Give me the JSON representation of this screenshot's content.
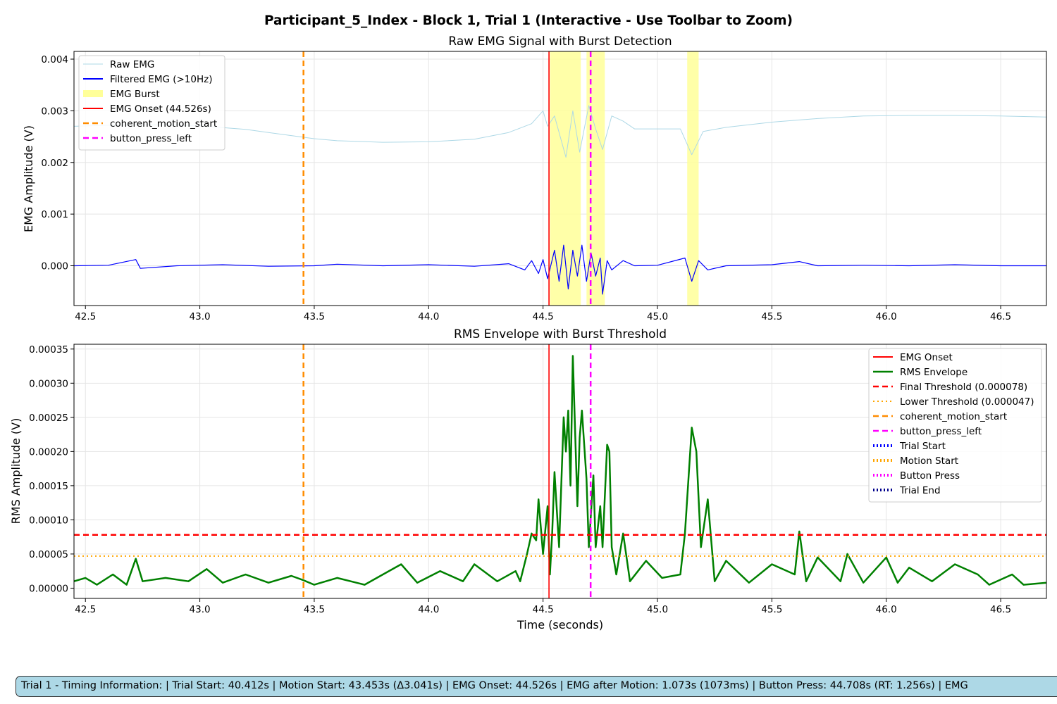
{
  "suptitle": "Participant_5_Index - Block 1, Trial 1 (Interactive - Use Toolbar to Zoom)",
  "timing_info": "Trial 1 - Timing Information:  |  Trial Start: 40.412s  |  Motion Start: 43.453s (Δ3.041s)  |  EMG Onset: 44.526s  |  EMG after Motion: 1.073s (1073ms)  |  Button Press: 44.708s (RT: 1.256s)  |  EMG",
  "chart_data": [
    {
      "type": "line",
      "title": "Raw EMG Signal with Burst Detection",
      "xlabel": "",
      "ylabel": "EMG Amplitude (V)",
      "xlim": [
        42.45,
        46.7
      ],
      "ylim": [
        -0.00077,
        0.00415
      ],
      "xticks": [
        42.5,
        43.0,
        43.5,
        44.0,
        44.5,
        45.0,
        45.5,
        46.0,
        46.5
      ],
      "xtick_labels": [
        "42.5",
        "43.0",
        "43.5",
        "44.0",
        "44.5",
        "45.0",
        "45.5",
        "46.0",
        "46.5"
      ],
      "yticks": [
        0.0,
        0.001,
        0.002,
        0.003,
        0.004
      ],
      "ytick_labels": [
        "0.000",
        "0.001",
        "0.002",
        "0.003",
        "0.004"
      ],
      "grid": true,
      "legend_position": "upper-left",
      "legend": [
        {
          "label": "Raw EMG",
          "color": "#add8e6",
          "style": "thin"
        },
        {
          "label": "Filtered EMG (>10Hz)",
          "color": "#0000ff",
          "style": "solid"
        },
        {
          "label": "EMG Burst",
          "color": "#ffff99",
          "style": "patch"
        },
        {
          "label": "EMG Onset (44.526s)",
          "color": "#ff0000",
          "style": "solid"
        },
        {
          "label": "coherent_motion_start",
          "color": "#ff8c00",
          "style": "dashed"
        },
        {
          "label": "button_press_left",
          "color": "#ff00ff",
          "style": "dashed"
        }
      ],
      "series": [
        {
          "name": "Raw EMG",
          "color": "#add8e6",
          "points": [
            [
              42.45,
              0.0027
            ],
            [
              42.6,
              0.00272
            ],
            [
              42.8,
              0.00273
            ],
            [
              43.0,
              0.00271
            ],
            [
              43.2,
              0.00264
            ],
            [
              43.4,
              0.00252
            ],
            [
              43.5,
              0.00246
            ],
            [
              43.6,
              0.00242
            ],
            [
              43.8,
              0.00239
            ],
            [
              44.0,
              0.0024
            ],
            [
              44.2,
              0.00245
            ],
            [
              44.35,
              0.00258
            ],
            [
              44.45,
              0.00275
            ],
            [
              44.5,
              0.003
            ],
            [
              44.52,
              0.0027
            ],
            [
              44.55,
              0.0029
            ],
            [
              44.6,
              0.0021
            ],
            [
              44.63,
              0.003
            ],
            [
              44.66,
              0.0022
            ],
            [
              44.7,
              0.0031
            ],
            [
              44.73,
              0.00265
            ],
            [
              44.76,
              0.00225
            ],
            [
              44.8,
              0.0029
            ],
            [
              44.85,
              0.0028
            ],
            [
              44.9,
              0.00265
            ],
            [
              45.0,
              0.00265
            ],
            [
              45.1,
              0.00265
            ],
            [
              45.15,
              0.00215
            ],
            [
              45.2,
              0.0026
            ],
            [
              45.3,
              0.00268
            ],
            [
              45.5,
              0.00278
            ],
            [
              45.7,
              0.00285
            ],
            [
              45.9,
              0.0029
            ],
            [
              46.1,
              0.00291
            ],
            [
              46.3,
              0.00291
            ],
            [
              46.5,
              0.0029
            ],
            [
              46.7,
              0.00288
            ]
          ]
        },
        {
          "name": "Filtered EMG (>10Hz)",
          "color": "#0000ff",
          "points": [
            [
              42.45,
              0.0
            ],
            [
              42.6,
              1e-05
            ],
            [
              42.72,
              0.00012
            ],
            [
              42.74,
              -5e-05
            ],
            [
              42.9,
              0.0
            ],
            [
              43.1,
              2e-05
            ],
            [
              43.3,
              -1e-05
            ],
            [
              43.5,
              0.0
            ],
            [
              43.6,
              3e-05
            ],
            [
              43.8,
              0.0
            ],
            [
              44.0,
              2e-05
            ],
            [
              44.2,
              -1e-05
            ],
            [
              44.35,
              4e-05
            ],
            [
              44.42,
              -8e-05
            ],
            [
              44.45,
              0.0001
            ],
            [
              44.48,
              -0.00015
            ],
            [
              44.5,
              0.00012
            ],
            [
              44.52,
              -0.00025
            ],
            [
              44.55,
              0.0003
            ],
            [
              44.57,
              -0.0003
            ],
            [
              44.59,
              0.0004
            ],
            [
              44.61,
              -0.00045
            ],
            [
              44.63,
              0.0003
            ],
            [
              44.65,
              -0.0002
            ],
            [
              44.67,
              0.0004
            ],
            [
              44.69,
              -0.0003
            ],
            [
              44.71,
              0.00025
            ],
            [
              44.73,
              -0.0002
            ],
            [
              44.75,
              0.00015
            ],
            [
              44.76,
              -0.00055
            ],
            [
              44.78,
              0.0001
            ],
            [
              44.8,
              -8e-05
            ],
            [
              44.85,
              0.0001
            ],
            [
              44.9,
              0.0
            ],
            [
              45.0,
              1e-05
            ],
            [
              45.12,
              0.00015
            ],
            [
              45.15,
              -0.0003
            ],
            [
              45.18,
              0.0001
            ],
            [
              45.22,
              -8e-05
            ],
            [
              45.3,
              0.0
            ],
            [
              45.5,
              2e-05
            ],
            [
              45.62,
              8e-05
            ],
            [
              45.7,
              0.0
            ],
            [
              45.9,
              1e-05
            ],
            [
              46.1,
              0.0
            ],
            [
              46.3,
              2e-05
            ],
            [
              46.5,
              0.0
            ],
            [
              46.7,
              0.0
            ]
          ]
        }
      ],
      "bursts": [
        [
          44.53,
          44.665
        ],
        [
          44.69,
          44.77
        ],
        [
          45.13,
          45.18
        ]
      ],
      "vlines": [
        {
          "name": "EMG Onset",
          "x": 44.526,
          "color": "#ff0000",
          "style": "solid"
        },
        {
          "name": "coherent_motion_start",
          "x": 43.453,
          "color": "#ff8c00",
          "style": "dashed"
        },
        {
          "name": "button_press_left",
          "x": 44.708,
          "color": "#ff00ff",
          "style": "dashed"
        }
      ]
    },
    {
      "type": "line",
      "title": "RMS Envelope with Burst Threshold",
      "xlabel": "Time (seconds)",
      "ylabel": "RMS Amplitude (V)",
      "xlim": [
        42.45,
        46.7
      ],
      "ylim": [
        -1.5e-05,
        0.000357
      ],
      "xticks": [
        42.5,
        43.0,
        43.5,
        44.0,
        44.5,
        45.0,
        45.5,
        46.0,
        46.5
      ],
      "xtick_labels": [
        "42.5",
        "43.0",
        "43.5",
        "44.0",
        "44.5",
        "45.0",
        "45.5",
        "46.0",
        "46.5"
      ],
      "yticks": [
        0.0,
        5e-05,
        0.0001,
        0.00015,
        0.0002,
        0.00025,
        0.0003,
        0.00035
      ],
      "ytick_labels": [
        "0.00000",
        "0.00005",
        "0.00010",
        "0.00015",
        "0.00020",
        "0.00025",
        "0.00030",
        "0.00035"
      ],
      "grid": true,
      "legend_position": "upper-right",
      "legend": [
        {
          "label": "EMG Onset",
          "color": "#ff0000",
          "style": "solid"
        },
        {
          "label": "RMS Envelope",
          "color": "#008000",
          "style": "thick"
        },
        {
          "label": "Final Threshold (0.000078)",
          "color": "#ff0000",
          "style": "dashed"
        },
        {
          "label": "Lower Threshold (0.000047)",
          "color": "#ffa500",
          "style": "dotted"
        },
        {
          "label": "coherent_motion_start",
          "color": "#ff8c00",
          "style": "dashed"
        },
        {
          "label": "button_press_left",
          "color": "#ff00ff",
          "style": "dashed"
        },
        {
          "label": "Trial Start",
          "color": "#0000ff",
          "style": "dotted-thick"
        },
        {
          "label": "Motion Start",
          "color": "#ffa500",
          "style": "dotted-thick"
        },
        {
          "label": "Button Press",
          "color": "#ff00ff",
          "style": "dotted-thick"
        },
        {
          "label": "Trial End",
          "color": "#00008b",
          "style": "dotted-thick"
        }
      ],
      "series": [
        {
          "name": "RMS Envelope",
          "color": "#008000",
          "points": [
            [
              42.45,
              1e-05
            ],
            [
              42.5,
              1.5e-05
            ],
            [
              42.55,
              5e-06
            ],
            [
              42.62,
              2e-05
            ],
            [
              42.68,
              5e-06
            ],
            [
              42.72,
              4.3e-05
            ],
            [
              42.75,
              1e-05
            ],
            [
              42.85,
              1.5e-05
            ],
            [
              42.95,
              1e-05
            ],
            [
              43.03,
              2.8e-05
            ],
            [
              43.1,
              8e-06
            ],
            [
              43.2,
              2e-05
            ],
            [
              43.3,
              8e-06
            ],
            [
              43.4,
              1.8e-05
            ],
            [
              43.45,
              1.2e-05
            ],
            [
              43.5,
              5e-06
            ],
            [
              43.6,
              1.5e-05
            ],
            [
              43.72,
              5e-06
            ],
            [
              43.8,
              2e-05
            ],
            [
              43.88,
              3.5e-05
            ],
            [
              43.95,
              8e-06
            ],
            [
              44.05,
              2.5e-05
            ],
            [
              44.15,
              1e-05
            ],
            [
              44.2,
              3.5e-05
            ],
            [
              44.3,
              1e-05
            ],
            [
              44.38,
              2.5e-05
            ],
            [
              44.4,
              1e-05
            ],
            [
              44.43,
              5e-05
            ],
            [
              44.45,
              8e-05
            ],
            [
              44.47,
              7e-05
            ],
            [
              44.48,
              0.00013
            ],
            [
              44.5,
              5e-05
            ],
            [
              44.52,
              0.00012
            ],
            [
              44.53,
              2e-05
            ],
            [
              44.54,
              8e-05
            ],
            [
              44.55,
              0.00017
            ],
            [
              44.57,
              6e-05
            ],
            [
              44.59,
              0.00025
            ],
            [
              44.6,
              0.0002
            ],
            [
              44.61,
              0.00026
            ],
            [
              44.62,
              0.00015
            ],
            [
              44.63,
              0.00034
            ],
            [
              44.65,
              0.00012
            ],
            [
              44.66,
              0.00022
            ],
            [
              44.67,
              0.00026
            ],
            [
              44.69,
              0.00016
            ],
            [
              44.7,
              6e-05
            ],
            [
              44.72,
              0.000165
            ],
            [
              44.73,
              6e-05
            ],
            [
              44.75,
              0.00012
            ],
            [
              44.76,
              6e-05
            ],
            [
              44.78,
              0.00021
            ],
            [
              44.79,
              0.0002
            ],
            [
              44.8,
              6e-05
            ],
            [
              44.82,
              2e-05
            ],
            [
              44.85,
              8e-05
            ],
            [
              44.88,
              1e-05
            ],
            [
              44.95,
              4e-05
            ],
            [
              45.02,
              1.5e-05
            ],
            [
              45.1,
              2e-05
            ],
            [
              45.12,
              8e-05
            ],
            [
              45.15,
              0.000235
            ],
            [
              45.17,
              0.0002
            ],
            [
              45.19,
              6e-05
            ],
            [
              45.22,
              0.00013
            ],
            [
              45.25,
              1e-05
            ],
            [
              45.3,
              4e-05
            ],
            [
              45.4,
              8e-06
            ],
            [
              45.5,
              3.5e-05
            ],
            [
              45.6,
              2e-05
            ],
            [
              45.62,
              8.3e-05
            ],
            [
              45.65,
              1e-05
            ],
            [
              45.7,
              4.5e-05
            ],
            [
              45.8,
              1e-05
            ],
            [
              45.83,
              5e-05
            ],
            [
              45.9,
              8e-06
            ],
            [
              46.0,
              4.5e-05
            ],
            [
              46.05,
              8e-06
            ],
            [
              46.1,
              3e-05
            ],
            [
              46.2,
              1e-05
            ],
            [
              46.3,
              3.5e-05
            ],
            [
              46.4,
              2e-05
            ],
            [
              46.45,
              5e-06
            ],
            [
              46.55,
              2e-05
            ],
            [
              46.6,
              5e-06
            ],
            [
              46.7,
              8e-06
            ]
          ]
        }
      ],
      "hlines": [
        {
          "name": "Final Threshold",
          "y": 7.8e-05,
          "color": "#ff0000",
          "style": "dashed"
        },
        {
          "name": "Lower Threshold",
          "y": 4.7e-05,
          "color": "#ffa500",
          "style": "dotted"
        }
      ],
      "vlines": [
        {
          "name": "EMG Onset",
          "x": 44.526,
          "color": "#ff0000",
          "style": "solid"
        },
        {
          "name": "coherent_motion_start",
          "x": 43.453,
          "color": "#ff8c00",
          "style": "dashed"
        },
        {
          "name": "button_press_left",
          "x": 44.708,
          "color": "#ff00ff",
          "style": "dashed"
        }
      ]
    }
  ]
}
